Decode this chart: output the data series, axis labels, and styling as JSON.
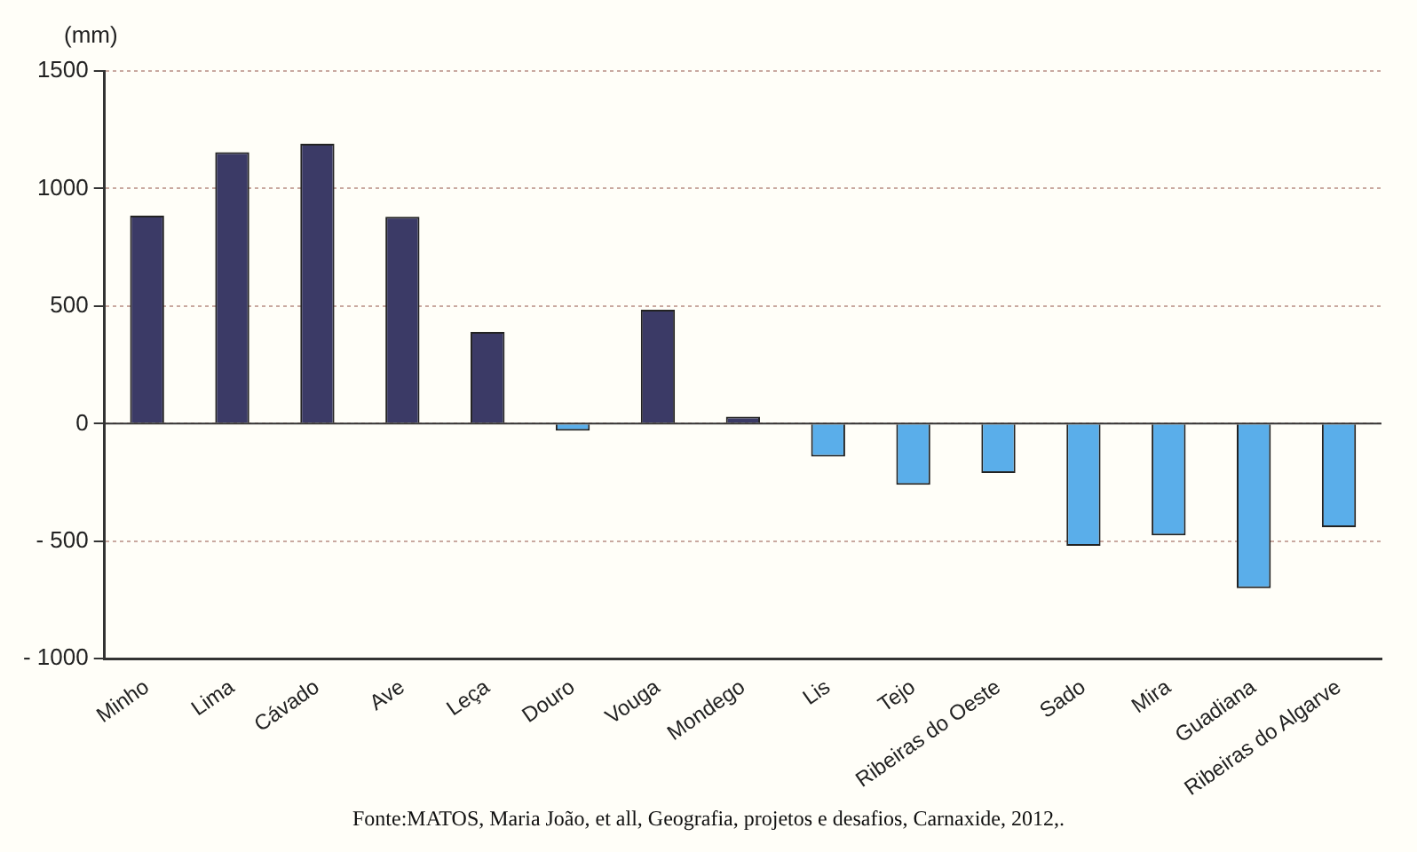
{
  "chart_data": {
    "type": "bar",
    "ylabel": "(mm)",
    "categories": [
      "Minho",
      "Lima",
      "Cávado",
      "Ave",
      "Leça",
      "Douro",
      "Vouga",
      "Mondego",
      "Lis",
      "Tejo",
      "Ribeiras do Oeste",
      "Sado",
      "Mira",
      "Guadiana",
      "Ribeiras do Algarve"
    ],
    "values": [
      885,
      1155,
      1190,
      880,
      390,
      -30,
      485,
      30,
      -140,
      -260,
      -210,
      -520,
      -475,
      -700,
      -440
    ],
    "colors": [
      "#3b3a66",
      "#3b3a66",
      "#3b3a66",
      "#3b3a66",
      "#3b3a66",
      "#5aaeea",
      "#3b3a66",
      "#3b3a66",
      "#5aaeea",
      "#5aaeea",
      "#5aaeea",
      "#5aaeea",
      "#5aaeea",
      "#5aaeea",
      "#5aaeea"
    ],
    "ylim": [
      -1000,
      1500
    ],
    "yticks": [
      {
        "value": -1000,
        "label": "- 1000"
      },
      {
        "value": -500,
        "label": "- 500"
      },
      0,
      500,
      1000,
      1500
    ],
    "grid": "y",
    "annotations": [
      "Fonte:MATOS, Maria João, et all, Geografia, projetos e desafios, Carnaxide, 2012,."
    ]
  }
}
